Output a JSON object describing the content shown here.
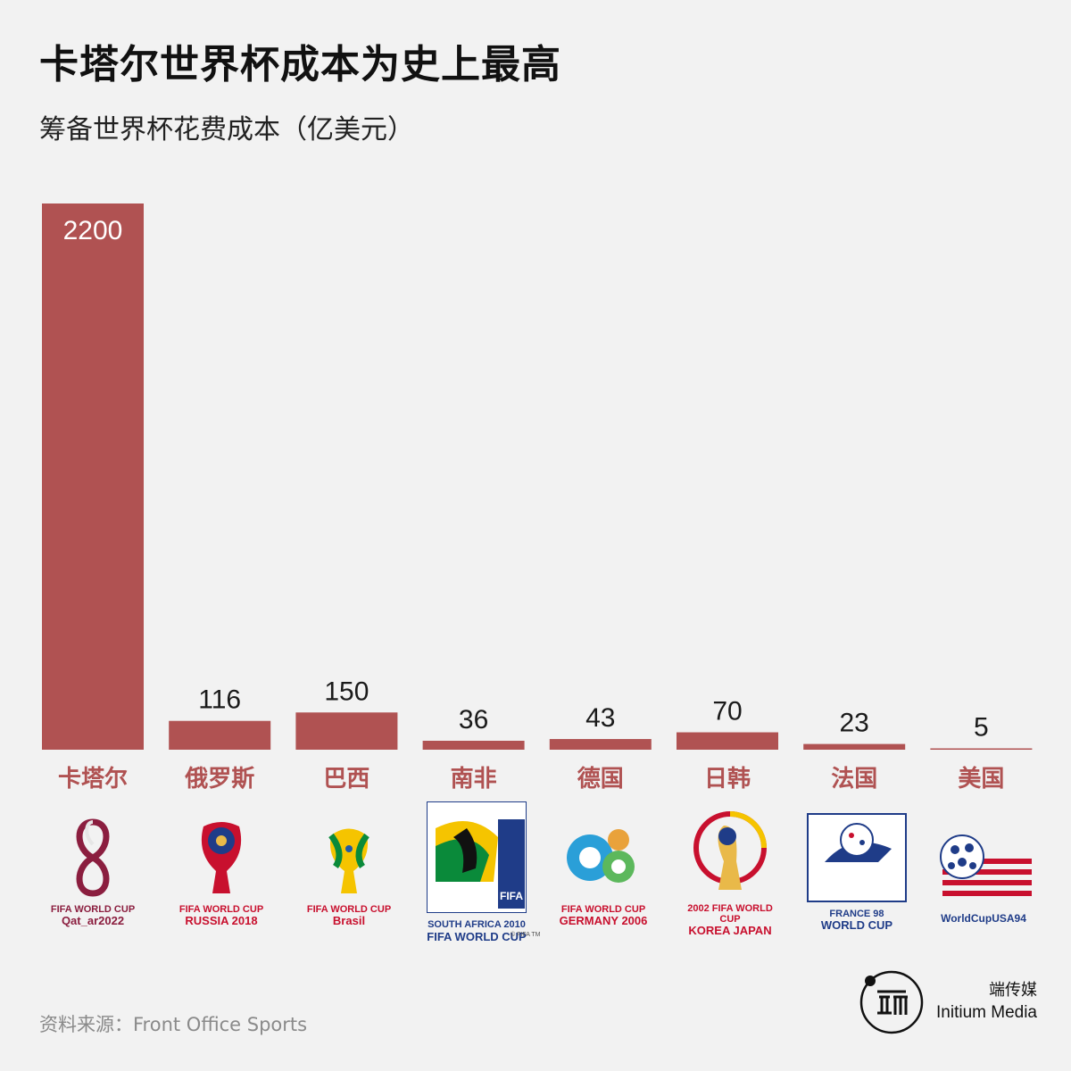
{
  "header": {
    "title": "卡塔尔世界杯成本为史上最高",
    "subtitle": "筹备世界杯花费成本（亿美元）"
  },
  "chart_data": {
    "type": "bar",
    "title": "卡塔尔世界杯成本为史上最高",
    "subtitle": "筹备世界杯花费成本（亿美元）",
    "categories": [
      "卡塔尔",
      "俄罗斯",
      "巴西",
      "南非",
      "德国",
      "日韩",
      "法国",
      "美国"
    ],
    "values": [
      2200,
      116,
      150,
      36,
      43,
      70,
      23,
      5
    ],
    "ylim": [
      0,
      2200
    ],
    "grid": false,
    "legend": "none",
    "bar_color": "#b05252",
    "label_color": "#b05252"
  },
  "logos": [
    {
      "icon": "qatar-2022-logo",
      "line1": "FIFA WORLD CUP",
      "line2": "Qat_ar2022"
    },
    {
      "icon": "russia-2018-logo",
      "line1": "FIFA WORLD CUP",
      "line2": "RUSSIA 2018"
    },
    {
      "icon": "brasil-2014-logo",
      "line1": "FIFA WORLD CUP",
      "line2": "Brasil"
    },
    {
      "icon": "south-africa-2010-logo",
      "line1": "SOUTH AFRICA 2010",
      "line2": "FIFA WORLD CUP"
    },
    {
      "icon": "germany-2006-logo",
      "line1": "FIFA WORLD CUP",
      "line2": "GERMANY 2006"
    },
    {
      "icon": "korea-japan-2002-logo",
      "line1": "2002 FIFA WORLD CUP",
      "line2": "KOREA JAPAN"
    },
    {
      "icon": "france-98-logo",
      "line1": "FRANCE 98",
      "line2": "WORLD CUP"
    },
    {
      "icon": "usa-94-logo",
      "line1": "WorldCupUSA94",
      "line2": ""
    }
  ],
  "small_print": "© FIFA TM",
  "footer": {
    "source": "资料来源：Front Office Sports",
    "brand_cn": "端传媒",
    "brand_en": "Initium Media",
    "brand_icon": "initium-logo"
  }
}
